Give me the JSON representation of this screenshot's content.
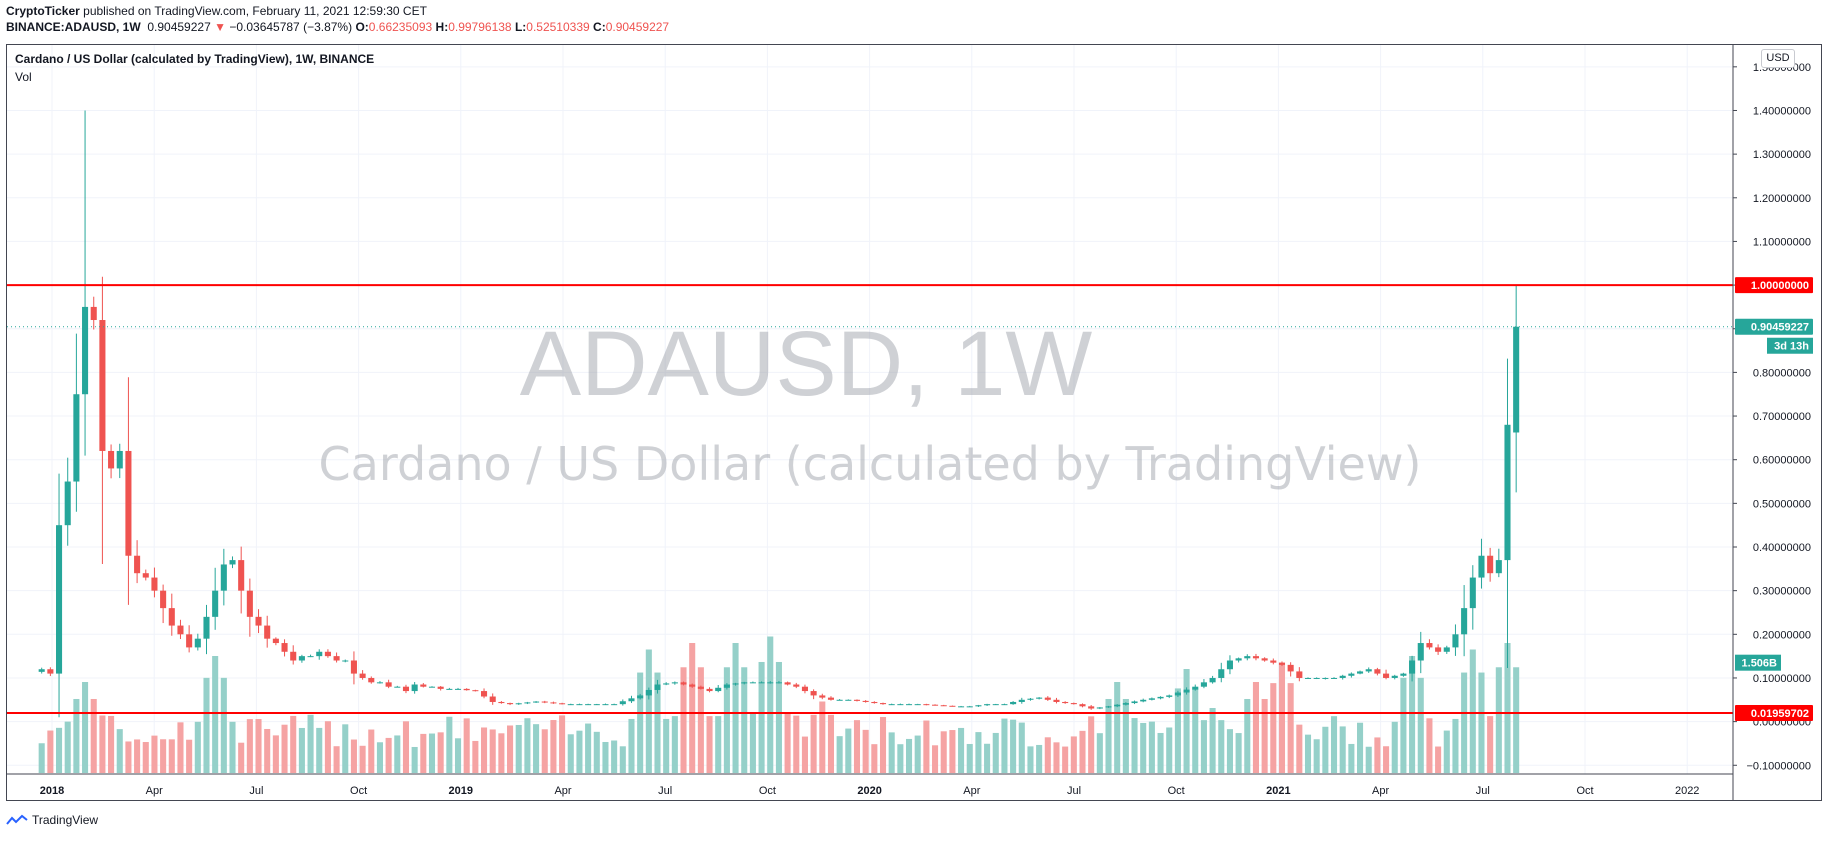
{
  "header": {
    "publisher": "CryptoTicker",
    "published_text": " published on TradingView.com, February 11, 2021 12:59:30 CET",
    "symbol": "BINANCE:ADAUSD, 1W",
    "last": "0.90459227",
    "change_arrow": "▼",
    "change": "−0.03645787 (−3.87%)",
    "o_label": "O:",
    "o_value": "0.66235093",
    "h_label": "H:",
    "h_value": "0.99796138",
    "l_label": "L:",
    "l_value": "0.52510339",
    "c_label": "C:",
    "c_value": "0.90459227"
  },
  "legend": {
    "title": "Cardano / US Dollar (calculated by TradingView), 1W, BINANCE",
    "vol": "Vol"
  },
  "scale_button": "USD",
  "footer": {
    "brand": "TradingView"
  },
  "colors": {
    "up": "#26a69a",
    "down": "#ef5350",
    "vol_up": "#95d0c9",
    "vol_down": "#f5a3a3",
    "hline": "#ff0000",
    "grid": "#f0f3fa",
    "watermark": "#9598a1"
  },
  "chart_data": {
    "type": "candlestick",
    "title": "Cardano / US Dollar (calculated by TradingView), 1W, BINANCE",
    "watermark": {
      "symbol": "ADAUSD, 1W",
      "description": "Cardano / US Dollar (calculated by TradingView)"
    },
    "y_axis": {
      "ylim": [
        -0.12,
        1.55
      ],
      "ticks": [
        "1.50000000",
        "1.40000000",
        "1.30000000",
        "1.20000000",
        "1.10000000",
        "1.00000000",
        "0.90000000",
        "0.80000000",
        "0.70000000",
        "0.60000000",
        "0.50000000",
        "0.40000000",
        "0.30000000",
        "0.20000000",
        "0.10000000",
        "0.00000000",
        "−0.10000000"
      ],
      "tick_values": [
        1.5,
        1.4,
        1.3,
        1.2,
        1.1,
        1.0,
        0.9,
        0.8,
        0.7,
        0.6,
        0.5,
        0.4,
        0.3,
        0.2,
        0.1,
        0.0,
        -0.1
      ]
    },
    "x_axis": {
      "labels": [
        "2018",
        "Apr",
        "Jul",
        "Oct",
        "2019",
        "Apr",
        "Jul",
        "Oct",
        "2020",
        "Apr",
        "Jul",
        "Oct",
        "2021",
        "Apr",
        "Jul",
        "Oct",
        "2022"
      ],
      "bold_labels": [
        "2018",
        "2019",
        "2020",
        "2021"
      ],
      "xlim_week": [
        -4,
        195
      ]
    },
    "horizontal_lines": [
      {
        "value": 1.0,
        "label": "1.00000000"
      },
      {
        "value": 0.01959702,
        "label": "0.01959702"
      }
    ],
    "price_labels": [
      {
        "value": 0.90459227,
        "label": "0.90459227"
      },
      {
        "value": 0.90459227,
        "label": "3d 13h"
      },
      {
        "value": 0.135,
        "label": "1.506B"
      }
    ],
    "last_price_line": 0.90459227,
    "anchor_points": [
      [
        0,
        0.12
      ],
      [
        1,
        0.11
      ],
      [
        2,
        0.45
      ],
      [
        3,
        0.55
      ],
      [
        4,
        0.75
      ],
      [
        5,
        0.95
      ],
      [
        6,
        0.92
      ],
      [
        7,
        0.62
      ],
      [
        8,
        0.58
      ],
      [
        9,
        0.62
      ],
      [
        10,
        0.38
      ],
      [
        11,
        0.34
      ],
      [
        12,
        0.33
      ],
      [
        13,
        0.3
      ],
      [
        14,
        0.26
      ],
      [
        15,
        0.22
      ],
      [
        16,
        0.2
      ],
      [
        17,
        0.17
      ],
      [
        18,
        0.19
      ],
      [
        19,
        0.24
      ],
      [
        20,
        0.3
      ],
      [
        21,
        0.36
      ],
      [
        22,
        0.37
      ],
      [
        23,
        0.3
      ],
      [
        24,
        0.24
      ],
      [
        25,
        0.22
      ],
      [
        26,
        0.19
      ],
      [
        27,
        0.18
      ],
      [
        28,
        0.16
      ],
      [
        29,
        0.14
      ],
      [
        30,
        0.15
      ],
      [
        31,
        0.15
      ],
      [
        32,
        0.16
      ],
      [
        33,
        0.15
      ],
      [
        34,
        0.14
      ],
      [
        35,
        0.14
      ],
      [
        36,
        0.11
      ],
      [
        37,
        0.1
      ],
      [
        38,
        0.09
      ],
      [
        39,
        0.09
      ],
      [
        40,
        0.08
      ],
      [
        41,
        0.08
      ],
      [
        42,
        0.07
      ],
      [
        43,
        0.085
      ],
      [
        44,
        0.08
      ],
      [
        45,
        0.08
      ],
      [
        46,
        0.075
      ],
      [
        47,
        0.075
      ],
      [
        48,
        0.075
      ],
      [
        49,
        0.072
      ],
      [
        50,
        0.07
      ],
      [
        52,
        0.045
      ],
      [
        54,
        0.04
      ],
      [
        57,
        0.046
      ],
      [
        60,
        0.04
      ],
      [
        64,
        0.04
      ],
      [
        66,
        0.04
      ],
      [
        69,
        0.06
      ],
      [
        71,
        0.085
      ],
      [
        73,
        0.09
      ],
      [
        75,
        0.08
      ],
      [
        77,
        0.07
      ],
      [
        79,
        0.085
      ],
      [
        81,
        0.09
      ],
      [
        83,
        0.09
      ],
      [
        85,
        0.09
      ],
      [
        87,
        0.08
      ],
      [
        89,
        0.06
      ],
      [
        91,
        0.05
      ],
      [
        93,
        0.05
      ],
      [
        97,
        0.04
      ],
      [
        101,
        0.04
      ],
      [
        105,
        0.035
      ],
      [
        107,
        0.035
      ],
      [
        109,
        0.04
      ],
      [
        111,
        0.04
      ],
      [
        113,
        0.05
      ],
      [
        115,
        0.055
      ],
      [
        117,
        0.045
      ],
      [
        119,
        0.04
      ],
      [
        121,
        0.03
      ],
      [
        123,
        0.035
      ],
      [
        127,
        0.05
      ],
      [
        130,
        0.06
      ],
      [
        133,
        0.08
      ],
      [
        135,
        0.1
      ],
      [
        137,
        0.14
      ],
      [
        139,
        0.15
      ],
      [
        141,
        0.14
      ],
      [
        143,
        0.13
      ],
      [
        145,
        0.1
      ],
      [
        147,
        0.1
      ],
      [
        149,
        0.1
      ],
      [
        151,
        0.11
      ],
      [
        153,
        0.12
      ],
      [
        155,
        0.1
      ],
      [
        157,
        0.11
      ],
      [
        158,
        0.14
      ],
      [
        159,
        0.18
      ],
      [
        160,
        0.17
      ],
      [
        161,
        0.16
      ],
      [
        162,
        0.17
      ],
      [
        163,
        0.2
      ],
      [
        164,
        0.26
      ],
      [
        165,
        0.33
      ],
      [
        166,
        0.38
      ],
      [
        167,
        0.34
      ],
      [
        168,
        0.37
      ],
      [
        169,
        0.68
      ],
      [
        170,
        0.90459227
      ]
    ],
    "last_candle": {
      "open": 0.66235093,
      "high": 0.99796138,
      "low": 0.52510339,
      "close": 0.90459227
    },
    "all_time_high_wick": 1.4,
    "volume_peaks": [
      [
        5,
        0.7
      ],
      [
        20,
        0.9
      ],
      [
        70,
        0.95
      ],
      [
        75,
        1.0
      ],
      [
        80,
        1.0
      ],
      [
        84,
        1.05
      ],
      [
        90,
        0.55
      ],
      [
        124,
        0.7
      ],
      [
        132,
        0.8
      ],
      [
        135,
        0.5
      ],
      [
        140,
        0.7
      ],
      [
        143,
        0.85
      ],
      [
        158,
        0.9
      ],
      [
        165,
        0.95
      ],
      [
        169,
        1.0
      ]
    ]
  }
}
